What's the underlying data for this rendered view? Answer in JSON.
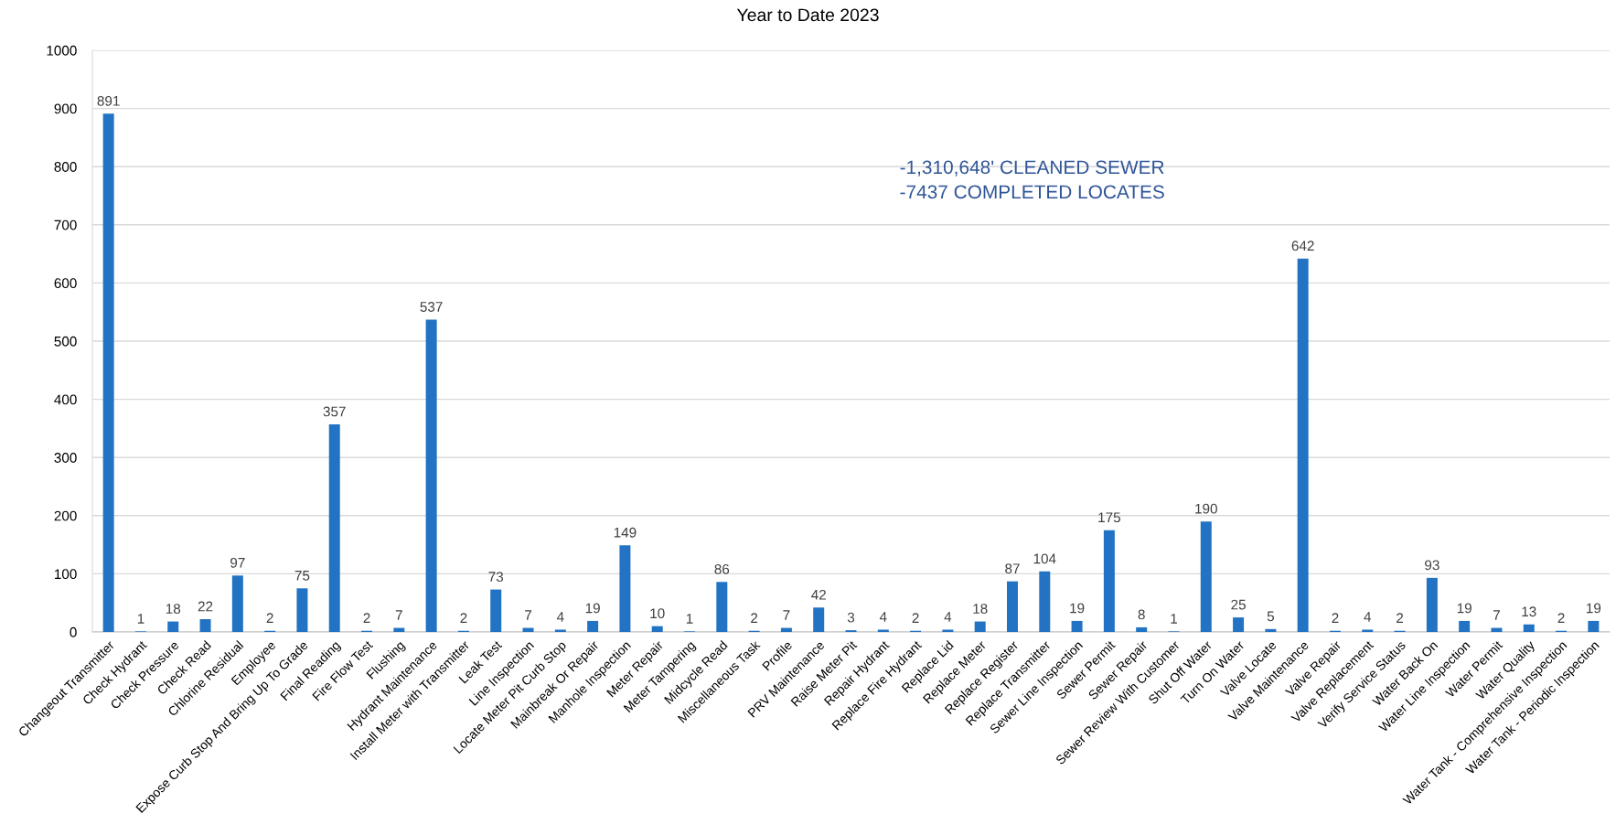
{
  "chart_data": {
    "type": "bar",
    "title": "Year to Date 2023",
    "categories": [
      "Changeout Transmitter",
      "Check Hydrant",
      "Check Pressure",
      "Check Read",
      "Chlorine Residual",
      "Employee",
      "Expose Curb Stop And Bring Up To Grade",
      "Final Reading",
      "Fire Flow Test",
      "Flushing",
      "Hydrant Maintenance",
      "Install Meter with Transmitter",
      "Leak Test",
      "Line Inspection",
      "Locate Meter Pit Curb Stop",
      "Mainbreak Or Repair",
      "Manhole Inspection",
      "Meter Repair",
      "Meter Tampering",
      "Midcycle Read",
      "Miscellaneous Task",
      "Profile",
      "PRV Maintenance",
      "Raise Meter Pit",
      "Repair Hydrant",
      "Replace Fire Hydrant",
      "Replace Lid",
      "Replace Meter",
      "Replace Register",
      "Replace Transmitter",
      "Sewer Line Inspection",
      "Sewer Permit",
      "Sewer Repair",
      "Sewer Review With Customer",
      "Shut Off Water",
      "Turn On Water",
      "Valve Locate",
      "Valve Maintenance",
      "Valve Repair",
      "Valve Replacement",
      "Verify Service Status",
      "Water Back On",
      "Water Line Inspection",
      "Water Permit",
      "Water Quality",
      "Water Tank - Comprehensive Inspection",
      "Water Tank - Periodic Inspection"
    ],
    "values": [
      891,
      1,
      18,
      22,
      97,
      2,
      75,
      357,
      2,
      7,
      537,
      2,
      73,
      7,
      4,
      19,
      149,
      10,
      1,
      86,
      2,
      7,
      42,
      3,
      4,
      2,
      4,
      18,
      87,
      104,
      19,
      175,
      8,
      1,
      190,
      25,
      5,
      642,
      2,
      4,
      2,
      93,
      19,
      7,
      13,
      2,
      19
    ],
    "color": "#2273c3",
    "ylim": [
      0,
      1000
    ],
    "yticks": [
      0,
      100,
      200,
      300,
      400,
      500,
      600,
      700,
      800,
      900,
      1000
    ],
    "grid": "y",
    "data_labels": true,
    "annotations": [
      "-1,310,648' CLEANED SEWER\n-7437 COMPLETED LOCATES"
    ]
  }
}
